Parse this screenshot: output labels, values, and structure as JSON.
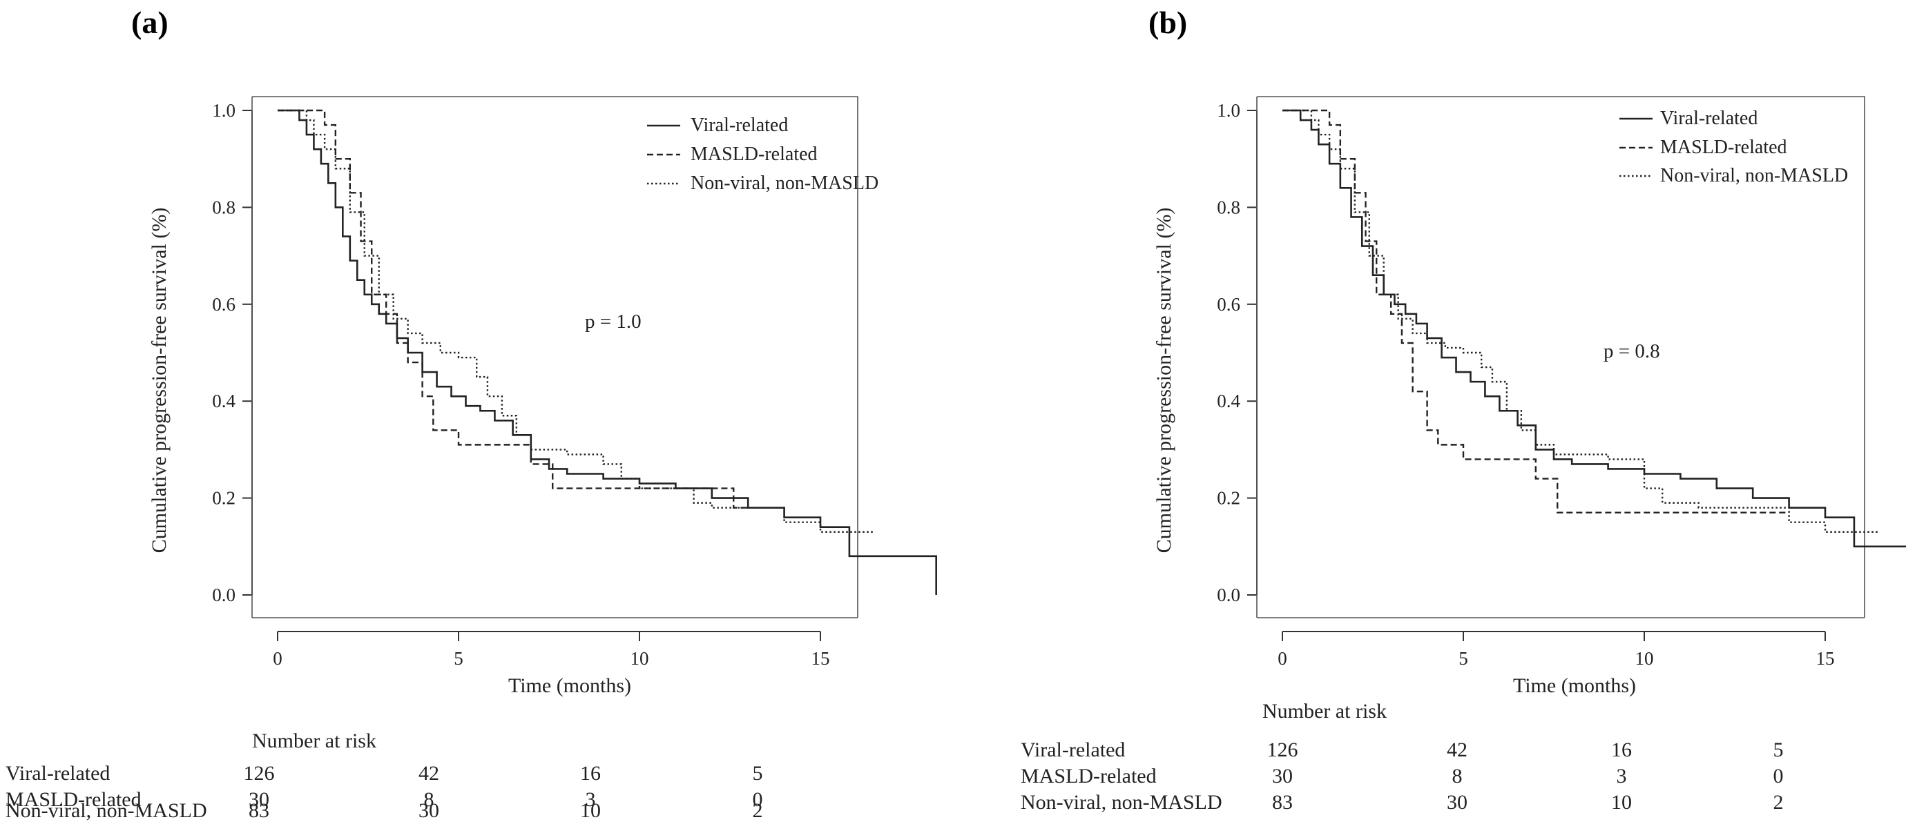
{
  "chart_data": [
    {
      "type": "line",
      "panel_label": "(a)",
      "xlabel": "Time (months)",
      "ylabel": "Cumulative progression-free survival  (%)",
      "xlim": [
        0,
        18.3
      ],
      "ylim": [
        0,
        1.0
      ],
      "x_ticks": [
        "0",
        "5",
        "10",
        "15"
      ],
      "y_ticks": [
        "0.0",
        "0.2",
        "0.4",
        "0.6",
        "0.8",
        "1.0"
      ],
      "annotation": "p = 1.0",
      "legend_position": "top-right",
      "series": [
        {
          "name": "Viral-related",
          "style": "solid",
          "x": [
            0,
            0.6,
            0.8,
            1.0,
            1.2,
            1.4,
            1.6,
            1.8,
            2.0,
            2.2,
            2.4,
            2.6,
            2.8,
            3.0,
            3.3,
            3.6,
            4.0,
            4.4,
            4.8,
            5.2,
            5.6,
            6.0,
            6.5,
            7.0,
            7.5,
            8.0,
            9.0,
            10.0,
            11.0,
            12.0,
            13.0,
            14.0,
            15.0,
            15.8,
            17.0,
            18.2
          ],
          "y": [
            1.0,
            0.98,
            0.95,
            0.92,
            0.89,
            0.85,
            0.8,
            0.74,
            0.69,
            0.65,
            0.62,
            0.6,
            0.58,
            0.56,
            0.53,
            0.5,
            0.46,
            0.43,
            0.41,
            0.39,
            0.38,
            0.36,
            0.33,
            0.28,
            0.26,
            0.25,
            0.24,
            0.23,
            0.22,
            0.2,
            0.18,
            0.16,
            0.14,
            0.08,
            0.08,
            0.0
          ]
        },
        {
          "name": "MASLD-related",
          "style": "dashed",
          "x": [
            0,
            1.0,
            1.3,
            1.6,
            2.0,
            2.3,
            2.6,
            3.0,
            3.3,
            3.6,
            4.0,
            4.3,
            5.0,
            5.3,
            6.0,
            7.0,
            7.6,
            10.0,
            11.0,
            12.6,
            14.0
          ],
          "y": [
            1.0,
            1.0,
            0.97,
            0.9,
            0.83,
            0.73,
            0.62,
            0.58,
            0.52,
            0.48,
            0.41,
            0.34,
            0.31,
            0.31,
            0.31,
            0.27,
            0.22,
            0.22,
            0.22,
            0.18,
            0.18
          ]
        },
        {
          "name": "Non-viral, non-MASLD",
          "style": "dotted",
          "x": [
            0,
            0.8,
            1.0,
            1.3,
            1.6,
            2.0,
            2.4,
            2.8,
            3.2,
            3.6,
            4.0,
            4.5,
            5.0,
            5.5,
            5.8,
            6.2,
            6.6,
            7.0,
            7.5,
            8.0,
            9.0,
            9.5,
            10.0,
            11.5,
            12.0,
            13.0,
            13.5,
            14.0,
            15.0,
            16.0,
            16.5
          ],
          "y": [
            1.0,
            0.98,
            0.95,
            0.92,
            0.88,
            0.79,
            0.7,
            0.62,
            0.57,
            0.54,
            0.52,
            0.5,
            0.49,
            0.45,
            0.41,
            0.37,
            0.33,
            0.3,
            0.3,
            0.29,
            0.27,
            0.24,
            0.22,
            0.19,
            0.18,
            0.18,
            0.18,
            0.15,
            0.13,
            0.13,
            0.13
          ]
        }
      ],
      "risk_table": {
        "title": "Number at risk",
        "times": [
          0,
          5,
          10,
          15
        ],
        "rows": [
          {
            "label": "Viral-related",
            "values": [
              "126",
              "42",
              "16",
              "5"
            ]
          },
          {
            "label": "MASLD-related",
            "values": [
              "30",
              "8",
              "3",
              "0"
            ]
          },
          {
            "label": "Non-viral, non-MASLD",
            "values": [
              "83",
              "30",
              "10",
              "2"
            ]
          }
        ]
      }
    },
    {
      "type": "line",
      "panel_label": "(b)",
      "xlabel": "Time (months)",
      "ylabel": "Cumulative progression-free survival  (%)",
      "xlim": [
        0,
        18.3
      ],
      "ylim": [
        0,
        1.0
      ],
      "x_ticks": [
        "0",
        "5",
        "10",
        "15"
      ],
      "y_ticks": [
        "0.0",
        "0.2",
        "0.4",
        "0.6",
        "0.8",
        "1.0"
      ],
      "annotation": "p = 0.8",
      "legend_position": "top-right",
      "series": [
        {
          "name": "Viral-related",
          "style": "solid",
          "x": [
            0,
            0.5,
            0.8,
            1.0,
            1.3,
            1.6,
            1.9,
            2.2,
            2.5,
            2.8,
            3.1,
            3.4,
            3.7,
            4.0,
            4.4,
            4.8,
            5.2,
            5.6,
            6.0,
            6.5,
            7.0,
            7.5,
            8.0,
            9.0,
            10.0,
            11.0,
            12.0,
            13.0,
            14.0,
            15.0,
            15.8,
            17.0,
            18.2
          ],
          "y": [
            1.0,
            0.98,
            0.96,
            0.93,
            0.89,
            0.84,
            0.78,
            0.72,
            0.66,
            0.62,
            0.6,
            0.58,
            0.56,
            0.53,
            0.49,
            0.46,
            0.44,
            0.41,
            0.38,
            0.35,
            0.3,
            0.28,
            0.27,
            0.26,
            0.25,
            0.24,
            0.22,
            0.2,
            0.18,
            0.16,
            0.1,
            0.1,
            0.04
          ]
        },
        {
          "name": "MASLD-related",
          "style": "dashed",
          "x": [
            0,
            1.0,
            1.3,
            1.6,
            2.0,
            2.3,
            2.6,
            3.0,
            3.3,
            3.6,
            4.0,
            4.3,
            5.0,
            6.0,
            7.0,
            7.6,
            10.0,
            11.0,
            12.6,
            14.0
          ],
          "y": [
            1.0,
            1.0,
            0.97,
            0.9,
            0.83,
            0.73,
            0.62,
            0.58,
            0.52,
            0.42,
            0.34,
            0.31,
            0.28,
            0.28,
            0.24,
            0.17,
            0.17,
            0.17,
            0.17,
            0.17
          ]
        },
        {
          "name": "Non-viral, non-MASLD",
          "style": "dotted",
          "x": [
            0,
            0.8,
            1.0,
            1.3,
            1.6,
            2.0,
            2.4,
            2.8,
            3.2,
            3.6,
            4.0,
            4.5,
            5.0,
            5.5,
            5.8,
            6.2,
            6.6,
            7.0,
            7.5,
            8.0,
            9.0,
            10.0,
            10.5,
            11.5,
            12.0,
            13.5,
            14.0,
            15.0,
            16.0,
            16.5
          ],
          "y": [
            1.0,
            0.98,
            0.95,
            0.92,
            0.88,
            0.79,
            0.7,
            0.62,
            0.57,
            0.54,
            0.52,
            0.51,
            0.5,
            0.47,
            0.44,
            0.38,
            0.34,
            0.31,
            0.29,
            0.29,
            0.28,
            0.22,
            0.19,
            0.18,
            0.18,
            0.18,
            0.15,
            0.13,
            0.13,
            0.13
          ]
        }
      ],
      "risk_table": {
        "title": "Number at risk",
        "times": [
          0,
          5,
          10,
          15
        ],
        "rows": [
          {
            "label": "Viral-related",
            "values": [
              "126",
              "42",
              "16",
              "5"
            ]
          },
          {
            "label": "MASLD-related",
            "values": [
              "30",
              "8",
              "3",
              "0"
            ]
          },
          {
            "label": "Non-viral, non-MASLD",
            "values": [
              "83",
              "30",
              "10",
              "2"
            ]
          }
        ]
      }
    }
  ]
}
